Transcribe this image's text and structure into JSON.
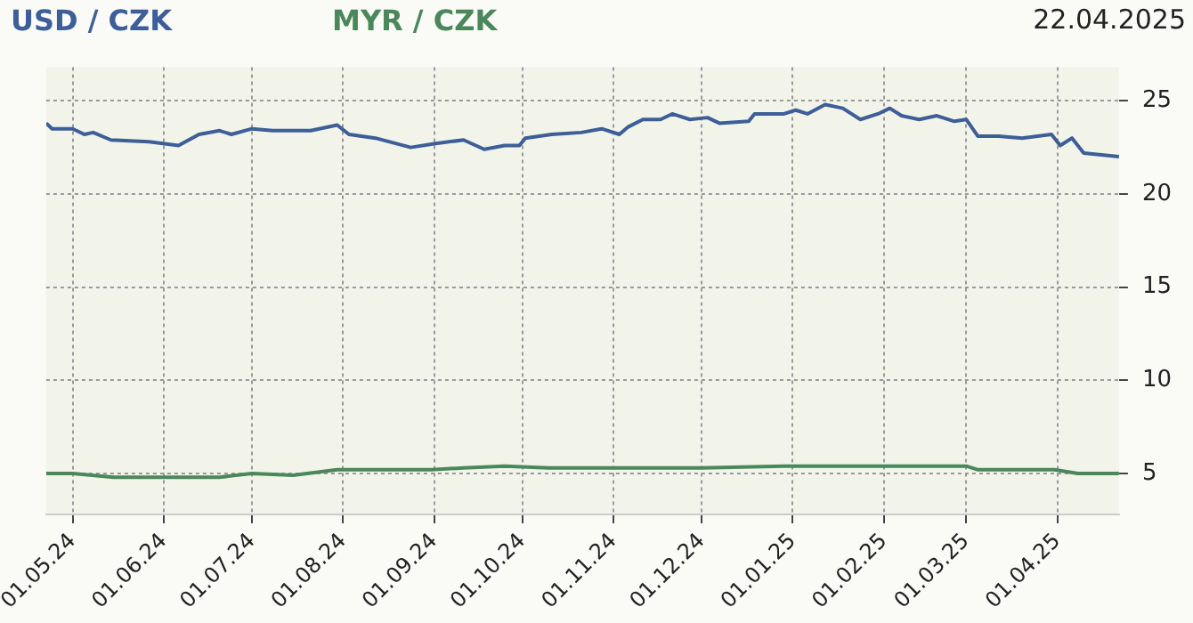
{
  "chart_data": {
    "type": "line",
    "title": "22.04.2025",
    "legend": "top left",
    "grid": true,
    "marker": "none",
    "line_style": "solid",
    "xlim": [
      "2024-04-22",
      "2025-04-22"
    ],
    "xticks": [
      {
        "value": "2024-05-01",
        "label": "01.05.24"
      },
      {
        "value": "2024-06-01",
        "label": "01.06.24"
      },
      {
        "value": "2024-07-01",
        "label": "01.07.24"
      },
      {
        "value": "2024-08-01",
        "label": "01.08.24"
      },
      {
        "value": "2024-09-01",
        "label": "01.09.24"
      },
      {
        "value": "2024-10-01",
        "label": "01.10.24"
      },
      {
        "value": "2024-11-01",
        "label": "01.11.24"
      },
      {
        "value": "2024-12-01",
        "label": "01.12.24"
      },
      {
        "value": "2025-01-01",
        "label": "01.01.25"
      },
      {
        "value": "2025-02-01",
        "label": "01.02.25"
      },
      {
        "value": "2025-03-01",
        "label": "01.03.25"
      },
      {
        "value": "2025-04-01",
        "label": "01.04.25"
      }
    ],
    "ylim": [
      2.8,
      26.8
    ],
    "yticks": [
      5,
      10,
      15,
      20,
      25
    ],
    "series": [
      {
        "name": "USD / CZK",
        "color": "#3d5e98",
        "x": [
          "2024-04-22",
          "2024-04-24",
          "2024-05-01",
          "2024-05-05",
          "2024-05-08",
          "2024-05-14",
          "2024-05-27",
          "2024-06-06",
          "2024-06-13",
          "2024-06-20",
          "2024-06-24",
          "2024-07-01",
          "2024-07-08",
          "2024-07-21",
          "2024-07-30",
          "2024-08-03",
          "2024-08-12",
          "2024-08-24",
          "2024-09-01",
          "2024-09-11",
          "2024-09-18",
          "2024-09-25",
          "2024-09-30",
          "2024-10-02",
          "2024-10-11",
          "2024-10-21",
          "2024-10-28",
          "2024-11-03",
          "2024-11-06",
          "2024-11-11",
          "2024-11-17",
          "2024-11-21",
          "2024-11-27",
          "2024-12-03",
          "2024-12-07",
          "2024-12-17",
          "2024-12-19",
          "2024-12-29",
          "2025-01-02",
          "2025-01-06",
          "2025-01-12",
          "2025-01-18",
          "2025-01-24",
          "2025-01-30",
          "2025-02-03",
          "2025-02-07",
          "2025-02-13",
          "2025-02-19",
          "2025-02-25",
          "2025-03-01",
          "2025-03-05",
          "2025-03-12",
          "2025-03-20",
          "2025-03-30",
          "2025-04-02",
          "2025-04-06",
          "2025-04-10",
          "2025-04-22"
        ],
        "values": [
          23.8,
          23.5,
          23.5,
          23.2,
          23.3,
          22.9,
          22.8,
          22.6,
          23.2,
          23.4,
          23.2,
          23.5,
          23.4,
          23.4,
          23.7,
          23.2,
          23.0,
          22.5,
          22.7,
          22.9,
          22.4,
          22.6,
          22.6,
          23.0,
          23.2,
          23.3,
          23.5,
          23.2,
          23.6,
          24.0,
          24.0,
          24.3,
          24.0,
          24.1,
          23.8,
          23.9,
          24.3,
          24.3,
          24.5,
          24.3,
          24.8,
          24.6,
          24.0,
          24.3,
          24.6,
          24.2,
          24.0,
          24.2,
          23.9,
          24.0,
          23.1,
          23.1,
          23.0,
          23.2,
          22.6,
          23.0,
          22.2,
          22.0
        ]
      },
      {
        "name": "MYR / CZK",
        "color": "#4a875a",
        "x": [
          "2024-04-22",
          "2024-05-01",
          "2024-05-15",
          "2024-06-20",
          "2024-07-01",
          "2024-07-15",
          "2024-07-30",
          "2024-08-31",
          "2024-09-11",
          "2024-09-25",
          "2024-10-10",
          "2024-11-01",
          "2024-12-01",
          "2024-12-29",
          "2025-02-01",
          "2025-02-16",
          "2025-03-01",
          "2025-03-05",
          "2025-03-31",
          "2025-04-08",
          "2025-04-22"
        ],
        "values": [
          5.0,
          5.0,
          4.8,
          4.8,
          5.0,
          4.9,
          5.2,
          5.2,
          5.3,
          5.4,
          5.3,
          5.3,
          5.3,
          5.4,
          5.4,
          5.4,
          5.4,
          5.2,
          5.2,
          5.0,
          5.0
        ]
      }
    ]
  }
}
